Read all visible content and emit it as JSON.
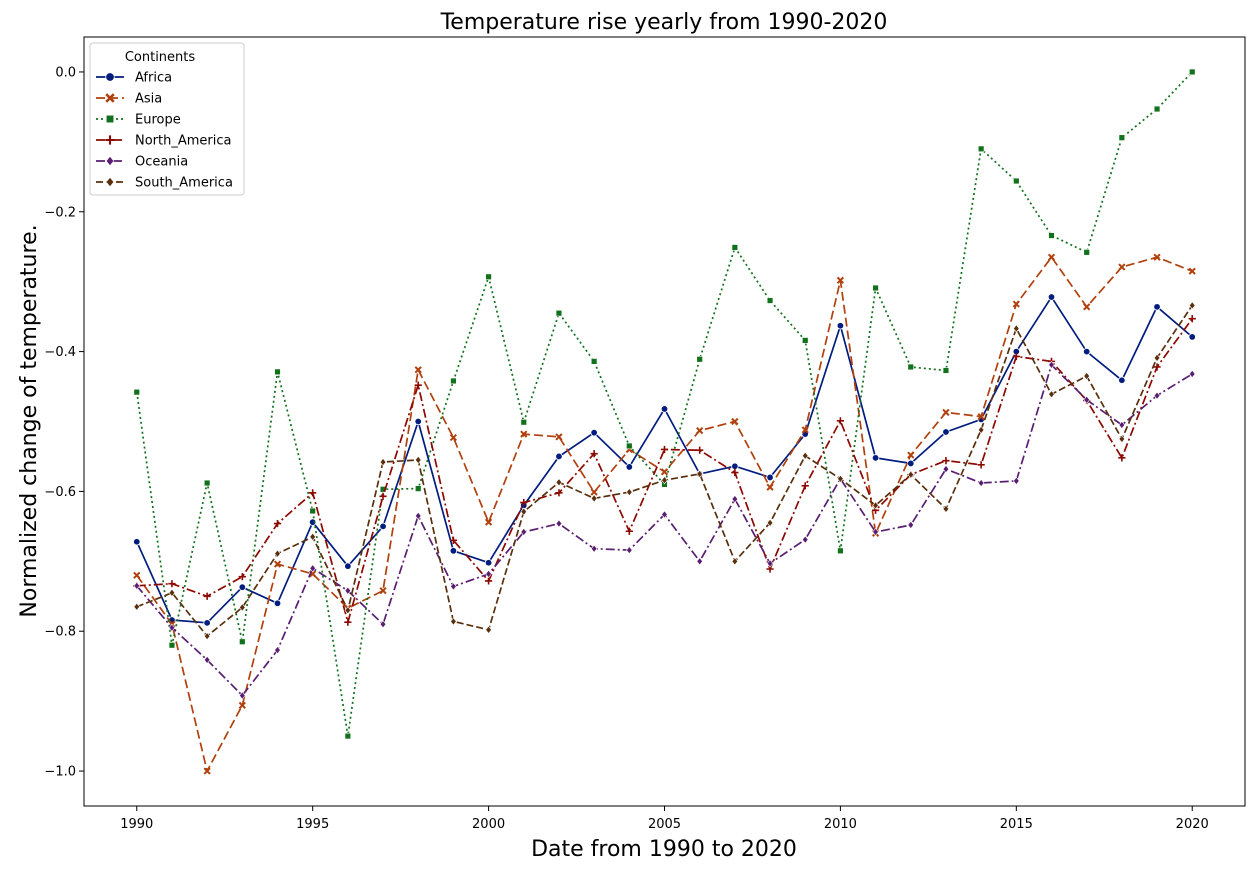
{
  "chart_data": {
    "type": "line",
    "title": "Temperature rise yearly from 1990-2020",
    "xlabel": "Date from 1990 to 2020",
    "ylabel": "Normalized change of temperature.",
    "xlim": [
      1988.5,
      2021.5
    ],
    "ylim": [
      -1.05,
      0.05
    ],
    "xticks": [
      "1990",
      "1995",
      "2000",
      "2005",
      "2010",
      "2015",
      "2020"
    ],
    "yticks": [
      "0.0",
      "−0.2",
      "−0.4",
      "−0.6",
      "−0.8",
      "−1.0"
    ],
    "grid": false,
    "legend": {
      "title": "Continents",
      "position": "top-left"
    },
    "x": [
      1990,
      1991,
      1992,
      1993,
      1994,
      1995,
      1996,
      1997,
      1998,
      1999,
      2000,
      2001,
      2002,
      2003,
      2004,
      2005,
      2006,
      2007,
      2008,
      2009,
      2010,
      2011,
      2012,
      2013,
      2014,
      2015,
      2016,
      2017,
      2018,
      2019,
      2020
    ],
    "series": [
      {
        "name": "Africa",
        "color": "#001c7f",
        "dash": "",
        "marker": "circle",
        "values": [
          -0.672,
          -0.784,
          -0.788,
          -0.737,
          -0.76,
          -0.644,
          -0.707,
          -0.65,
          -0.5,
          -0.685,
          -0.702,
          -0.62,
          -0.55,
          -0.516,
          -0.565,
          -0.482,
          -0.575,
          -0.564,
          -0.58,
          -0.518,
          -0.363,
          -0.552,
          -0.56,
          -0.515,
          -0.497,
          -0.4,
          -0.322,
          -0.4,
          -0.441,
          -0.336,
          -0.379
        ]
      },
      {
        "name": "Asia",
        "color": "#b1400d",
        "dash": "9,4",
        "marker": "x",
        "values": [
          -0.72,
          -0.79,
          -1.0,
          -0.906,
          -0.704,
          -0.718,
          -0.767,
          -0.742,
          -0.426,
          -0.523,
          -0.644,
          -0.518,
          -0.522,
          -0.601,
          -0.54,
          -0.572,
          -0.513,
          -0.5,
          -0.594,
          -0.512,
          -0.298,
          -0.66,
          -0.548,
          -0.487,
          -0.493,
          -0.332,
          -0.265,
          -0.336,
          -0.279,
          -0.265,
          -0.285
        ]
      },
      {
        "name": "Europe",
        "color": "#12711c",
        "dash": "2,3",
        "marker": "square",
        "values": [
          -0.458,
          -0.82,
          -0.588,
          -0.815,
          -0.429,
          -0.628,
          -0.95,
          -0.597,
          -0.596,
          -0.442,
          -0.293,
          -0.501,
          -0.345,
          -0.414,
          -0.535,
          -0.59,
          -0.411,
          -0.251,
          -0.327,
          -0.384,
          -0.685,
          -0.309,
          -0.422,
          -0.427,
          -0.11,
          -0.156,
          -0.234,
          -0.258,
          -0.094,
          -0.053,
          0.0
        ]
      },
      {
        "name": "North_America",
        "color": "#8c0800",
        "dash": "9,3,2,3",
        "marker": "plus",
        "values": [
          -0.735,
          -0.732,
          -0.75,
          -0.722,
          -0.646,
          -0.602,
          -0.787,
          -0.607,
          -0.448,
          -0.67,
          -0.728,
          -0.616,
          -0.602,
          -0.546,
          -0.657,
          -0.54,
          -0.541,
          -0.573,
          -0.711,
          -0.592,
          -0.499,
          -0.627,
          -0.576,
          -0.556,
          -0.562,
          -0.407,
          -0.414,
          -0.47,
          -0.552,
          -0.422,
          -0.353
        ]
      },
      {
        "name": "Oceania",
        "color": "#591e71",
        "dash": "9,3,2,3",
        "marker": "diamond",
        "values": [
          -0.735,
          -0.795,
          -0.841,
          -0.892,
          -0.827,
          -0.71,
          -0.742,
          -0.79,
          -0.635,
          -0.736,
          -0.718,
          -0.658,
          -0.646,
          -0.682,
          -0.684,
          -0.633,
          -0.7,
          -0.611,
          -0.703,
          -0.669,
          -0.582,
          -0.658,
          -0.648,
          -0.568,
          -0.588,
          -0.585,
          -0.419,
          -0.469,
          -0.505,
          -0.463,
          -0.432
        ]
      },
      {
        "name": "South_America",
        "color": "#592f0d",
        "dash": "7,3",
        "marker": "diamond",
        "values": [
          -0.765,
          -0.745,
          -0.807,
          -0.766,
          -0.689,
          -0.665,
          -0.77,
          -0.558,
          -0.555,
          -0.786,
          -0.798,
          -0.629,
          -0.587,
          -0.61,
          -0.601,
          -0.584,
          -0.575,
          -0.7,
          -0.645,
          -0.549,
          -0.582,
          -0.62,
          -0.576,
          -0.625,
          -0.512,
          -0.367,
          -0.461,
          -0.435,
          -0.525,
          -0.409,
          -0.334
        ]
      }
    ]
  }
}
